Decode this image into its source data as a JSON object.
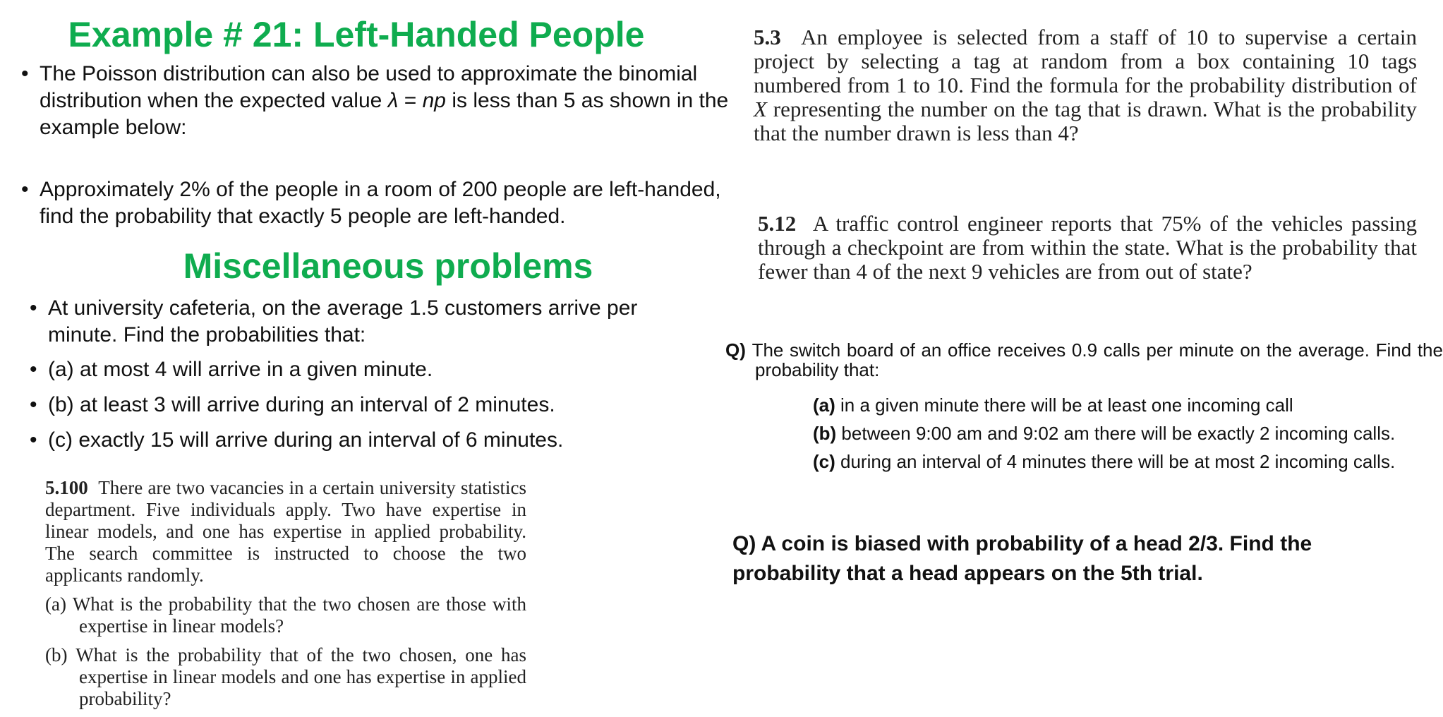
{
  "left": {
    "example_title": "Example # 21: Left-Handed People",
    "poisson_bullet_pre": "The Poisson distribution can also be used to approximate the binomial distribution when the expected value ",
    "poisson_lambda": "λ",
    "poisson_eq": " = ",
    "poisson_np": "np",
    "poisson_bullet_post": " is less than 5 as shown in the example below:",
    "left_handed_bullet": "Approximately 2% of the people in a room of 200 people are left-handed, find the probability that exactly 5 people are left-handed.",
    "misc_title": "Miscellaneous problems",
    "cafeteria_intro": "At university cafeteria, on the average 1.5 customers arrive per minute. Find the probabilities that:",
    "cafeteria_a": "(a) at most 4 will arrive in a given minute.",
    "cafeteria_b": "(b) at least 3 will arrive during an interval of 2 minutes.",
    "cafeteria_c": "(c) exactly 15 will arrive during an interval of 6 minutes.",
    "p5_100_num": "5.100",
    "p5_100_text": "There are two vacancies in a certain university statistics department. Five individuals apply. Two have expertise in linear models, and one has expertise in applied probability. The search committee is instructed to choose the two applicants randomly.",
    "p5_100_a_label": "(a)",
    "p5_100_a": "What is the probability that the two chosen are those with expertise in linear models?",
    "p5_100_b_label": "(b)",
    "p5_100_b": "What is the probability that of the two chosen, one has expertise in linear models and one has expertise in applied probability?"
  },
  "right": {
    "p5_3_num": "5.3",
    "p5_3_pre": "An employee is selected from a staff of 10 to supervise a certain project by selecting a tag at random from a box containing 10 tags numbered from 1 to 10. Find the formula for the probability distribution of ",
    "p5_3_var": "X",
    "p5_3_post": " representing the number on the tag that is drawn. What is the probability that the number drawn is less than 4?",
    "p5_12_num": "5.12",
    "p5_12_text": "A traffic control engineer reports that 75% of the vehicles passing through a checkpoint are from within the state. What is the probability that fewer than 4 of the next 9 vehicles are from out of state?",
    "switch_q_label": "Q)",
    "switch_q_text": "The switch board of an office receives 0.9 calls per minute on the average. Find the probability that:",
    "switch_a_label": "(a)",
    "switch_a_text": " in a given minute there will be at least one incoming call",
    "switch_b_label": "(b)",
    "switch_b_text": " between 9:00 am and 9:02 am there will be exactly 2 incoming calls.",
    "switch_c_label": "(c)",
    "switch_c_text": " during an interval of 4 minutes there will be at most 2 incoming calls.",
    "coin_q": "Q) A coin is biased with probability of a head 2/3. Find the probability that a head appears on the 5th trial."
  }
}
